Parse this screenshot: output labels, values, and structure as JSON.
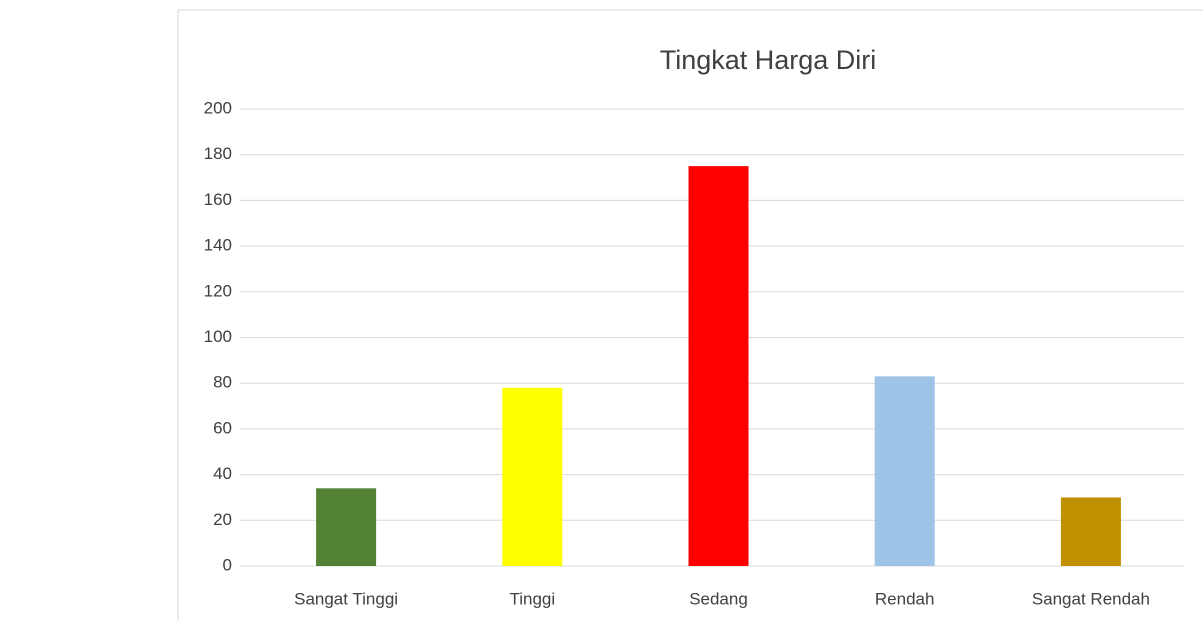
{
  "chart_data": {
    "type": "bar",
    "title": "Tingkat Harga Diri",
    "categories": [
      "Sangat Tinggi",
      "Tinggi",
      "Sedang",
      "Rendah",
      "Sangat Rendah"
    ],
    "values": [
      34,
      78,
      175,
      83,
      30
    ],
    "colors": [
      "#548235",
      "#ffff00",
      "#ff0000",
      "#9dc3e6",
      "#bf9000"
    ],
    "ylim": [
      0,
      200
    ],
    "yticks": [
      0,
      20,
      40,
      60,
      80,
      100,
      120,
      140,
      160,
      180,
      200
    ],
    "grid": true
  }
}
